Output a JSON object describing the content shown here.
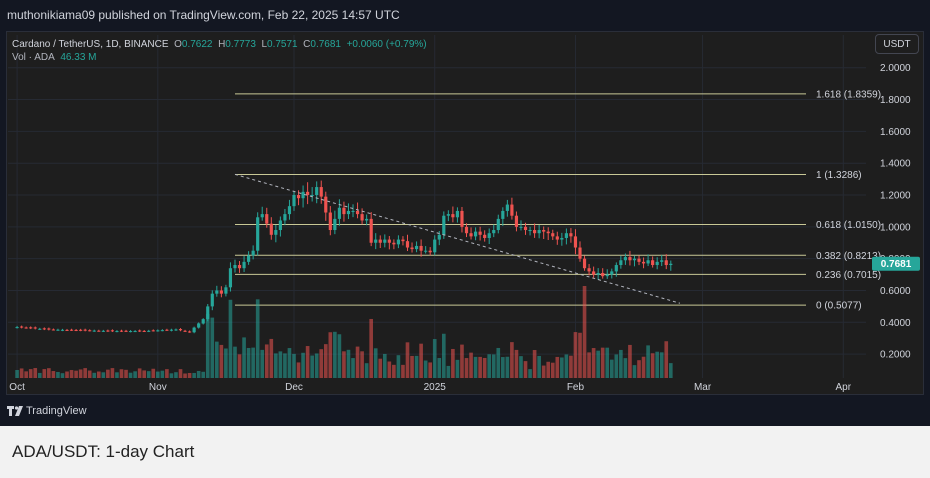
{
  "publish": {
    "text": "muthonikiama09 published on TradingView.com, Feb 22, 2025 14:57 UTC"
  },
  "legend": {
    "symbol": "Cardano / TetherUS, 1D, BINANCE",
    "o_label": "O",
    "o_value": "0.7622",
    "h_label": "H",
    "h_value": "0.7773",
    "l_label": "L",
    "l_value": "0.7571",
    "c_label": "C",
    "c_value": "0.7681",
    "change": "+0.0060 (+0.79%)",
    "vol_label": "Vol · ADA",
    "vol_value": "46.33 M"
  },
  "currency_button": "USDT",
  "brand": "TradingView",
  "caption": "ADA/USDT: 1-day Chart",
  "colors": {
    "up": "#26a69a",
    "down": "#ef5350",
    "fib": "#c8c896",
    "background": "#1e1e1e",
    "price_label": "#26a69a"
  },
  "chart_data": {
    "type": "candlestick",
    "y_ticks": [
      "2.0000",
      "1.8000",
      "1.6000",
      "1.4000",
      "1.2000",
      "1.0000",
      "0.8000",
      "0.6000",
      "0.4000",
      "0.2000"
    ],
    "ylim": [
      0.05,
      2.08
    ],
    "x_ticks": [
      {
        "label": "Oct",
        "date": "2024-10-01"
      },
      {
        "label": "Nov",
        "date": "2024-11-01"
      },
      {
        "label": "Dec",
        "date": "2024-12-01"
      },
      {
        "label": "2025",
        "date": "2025-01-01"
      },
      {
        "label": "Feb",
        "date": "2025-02-01"
      },
      {
        "label": "Mar",
        "date": "2025-03-01"
      },
      {
        "label": "Apr",
        "date": "2025-04-01"
      }
    ],
    "xlim": [
      "2024-09-29",
      "2025-04-06"
    ],
    "last_price": "0.7681",
    "fib_levels": [
      {
        "label": "1.618 (1.8359)",
        "value": 1.8359
      },
      {
        "label": "1 (1.3286)",
        "value": 1.3286
      },
      {
        "label": "0.618 (1.0150)",
        "value": 1.015
      },
      {
        "label": "0.382 (0.8213)",
        "value": 0.8213
      },
      {
        "label": "0.236 (0.7015)",
        "value": 0.7015
      },
      {
        "label": "0 (0.5077)",
        "value": 0.5077
      }
    ],
    "fib_start_date": "2024-11-18",
    "trendline": {
      "start": [
        "2024-11-18",
        1.33
      ],
      "end": [
        "2025-02-24",
        0.52
      ]
    },
    "series": [
      {
        "name": "price",
        "points": [
          [
            "2024-10-01",
            0.37
          ],
          [
            "2024-10-08",
            0.355
          ],
          [
            "2024-10-15",
            0.35
          ],
          [
            "2024-10-22",
            0.345
          ],
          [
            "2024-10-29",
            0.345
          ],
          [
            "2024-11-05",
            0.355
          ],
          [
            "2024-11-08",
            0.34
          ],
          [
            "2024-11-11",
            0.42
          ],
          [
            "2024-11-12",
            0.5
          ],
          [
            "2024-11-13",
            0.58
          ],
          [
            "2024-11-14",
            0.6
          ],
          [
            "2024-11-15",
            0.58
          ],
          [
            "2024-11-16",
            0.62
          ],
          [
            "2024-11-17",
            0.74
          ],
          [
            "2024-11-18",
            0.76
          ],
          [
            "2024-11-19",
            0.74
          ],
          [
            "2024-11-20",
            0.78
          ],
          [
            "2024-11-21",
            0.82
          ],
          [
            "2024-11-22",
            0.85
          ],
          [
            "2024-11-23",
            1.06
          ],
          [
            "2024-11-24",
            1.08
          ],
          [
            "2024-11-25",
            1.02
          ],
          [
            "2024-11-26",
            0.95
          ],
          [
            "2024-11-27",
            0.98
          ],
          [
            "2024-11-28",
            1.04
          ],
          [
            "2024-11-29",
            1.08
          ],
          [
            "2024-11-30",
            1.13
          ],
          [
            "2024-12-01",
            1.2
          ],
          [
            "2024-12-02",
            1.18
          ],
          [
            "2024-12-03",
            1.22
          ],
          [
            "2024-12-04",
            1.2
          ],
          [
            "2024-12-05",
            1.2
          ],
          [
            "2024-12-06",
            1.25
          ],
          [
            "2024-12-07",
            1.19
          ],
          [
            "2024-12-08",
            1.09
          ],
          [
            "2024-12-09",
            0.98
          ],
          [
            "2024-12-10",
            1.05
          ],
          [
            "2024-12-11",
            1.12
          ],
          [
            "2024-12-12",
            1.08
          ],
          [
            "2024-12-13",
            1.1
          ],
          [
            "2024-12-14",
            1.1
          ],
          [
            "2024-12-15",
            1.08
          ],
          [
            "2024-12-16",
            1.04
          ],
          [
            "2024-12-17",
            1.05
          ],
          [
            "2024-12-18",
            0.9
          ],
          [
            "2024-12-19",
            0.92
          ],
          [
            "2024-12-20",
            0.9
          ],
          [
            "2024-12-21",
            0.92
          ],
          [
            "2024-12-22",
            0.9
          ],
          [
            "2024-12-23",
            0.89
          ],
          [
            "2024-12-24",
            0.92
          ],
          [
            "2024-12-25",
            0.91
          ],
          [
            "2024-12-26",
            0.87
          ],
          [
            "2024-12-27",
            0.86
          ],
          [
            "2024-12-28",
            0.88
          ],
          [
            "2024-12-29",
            0.85
          ],
          [
            "2024-12-30",
            0.85
          ],
          [
            "2024-12-31",
            0.84
          ],
          [
            "2025-01-01",
            0.92
          ],
          [
            "2025-01-02",
            0.95
          ],
          [
            "2025-01-03",
            1.07
          ],
          [
            "2025-01-04",
            1.08
          ],
          [
            "2025-01-05",
            1.06
          ],
          [
            "2025-01-06",
            1.1
          ],
          [
            "2025-01-07",
            1.0
          ],
          [
            "2025-01-08",
            0.96
          ],
          [
            "2025-01-09",
            0.94
          ],
          [
            "2025-01-10",
            0.97
          ],
          [
            "2025-01-11",
            0.95
          ],
          [
            "2025-01-12",
            0.93
          ],
          [
            "2025-01-13",
            0.96
          ],
          [
            "2025-01-14",
            0.98
          ],
          [
            "2025-01-15",
            1.05
          ],
          [
            "2025-01-16",
            1.1
          ],
          [
            "2025-01-17",
            1.14
          ],
          [
            "2025-01-18",
            1.07
          ],
          [
            "2025-01-19",
            1.0
          ],
          [
            "2025-01-20",
            1.0
          ],
          [
            "2025-01-21",
            0.98
          ],
          [
            "2025-01-22",
            0.98
          ],
          [
            "2025-01-23",
            0.96
          ],
          [
            "2025-01-24",
            0.98
          ],
          [
            "2025-01-25",
            0.97
          ],
          [
            "2025-01-26",
            0.96
          ],
          [
            "2025-01-27",
            0.94
          ],
          [
            "2025-01-28",
            0.92
          ],
          [
            "2025-01-29",
            0.93
          ],
          [
            "2025-01-30",
            0.96
          ],
          [
            "2025-01-31",
            0.94
          ],
          [
            "2025-02-01",
            0.87
          ],
          [
            "2025-02-02",
            0.8
          ],
          [
            "2025-02-03",
            0.74
          ],
          [
            "2025-02-04",
            0.72
          ],
          [
            "2025-02-05",
            0.7
          ],
          [
            "2025-02-06",
            0.71
          ],
          [
            "2025-02-07",
            0.69
          ],
          [
            "2025-02-08",
            0.7
          ],
          [
            "2025-02-09",
            0.72
          ],
          [
            "2025-02-10",
            0.76
          ],
          [
            "2025-02-11",
            0.79
          ],
          [
            "2025-02-12",
            0.81
          ],
          [
            "2025-02-13",
            0.79
          ],
          [
            "2025-02-14",
            0.8
          ],
          [
            "2025-02-15",
            0.78
          ],
          [
            "2025-02-16",
            0.77
          ],
          [
            "2025-02-17",
            0.79
          ],
          [
            "2025-02-18",
            0.76
          ],
          [
            "2025-02-19",
            0.78
          ],
          [
            "2025-02-20",
            0.79
          ],
          [
            "2025-02-21",
            0.76
          ],
          [
            "2025-02-22",
            0.768
          ]
        ]
      }
    ]
  }
}
